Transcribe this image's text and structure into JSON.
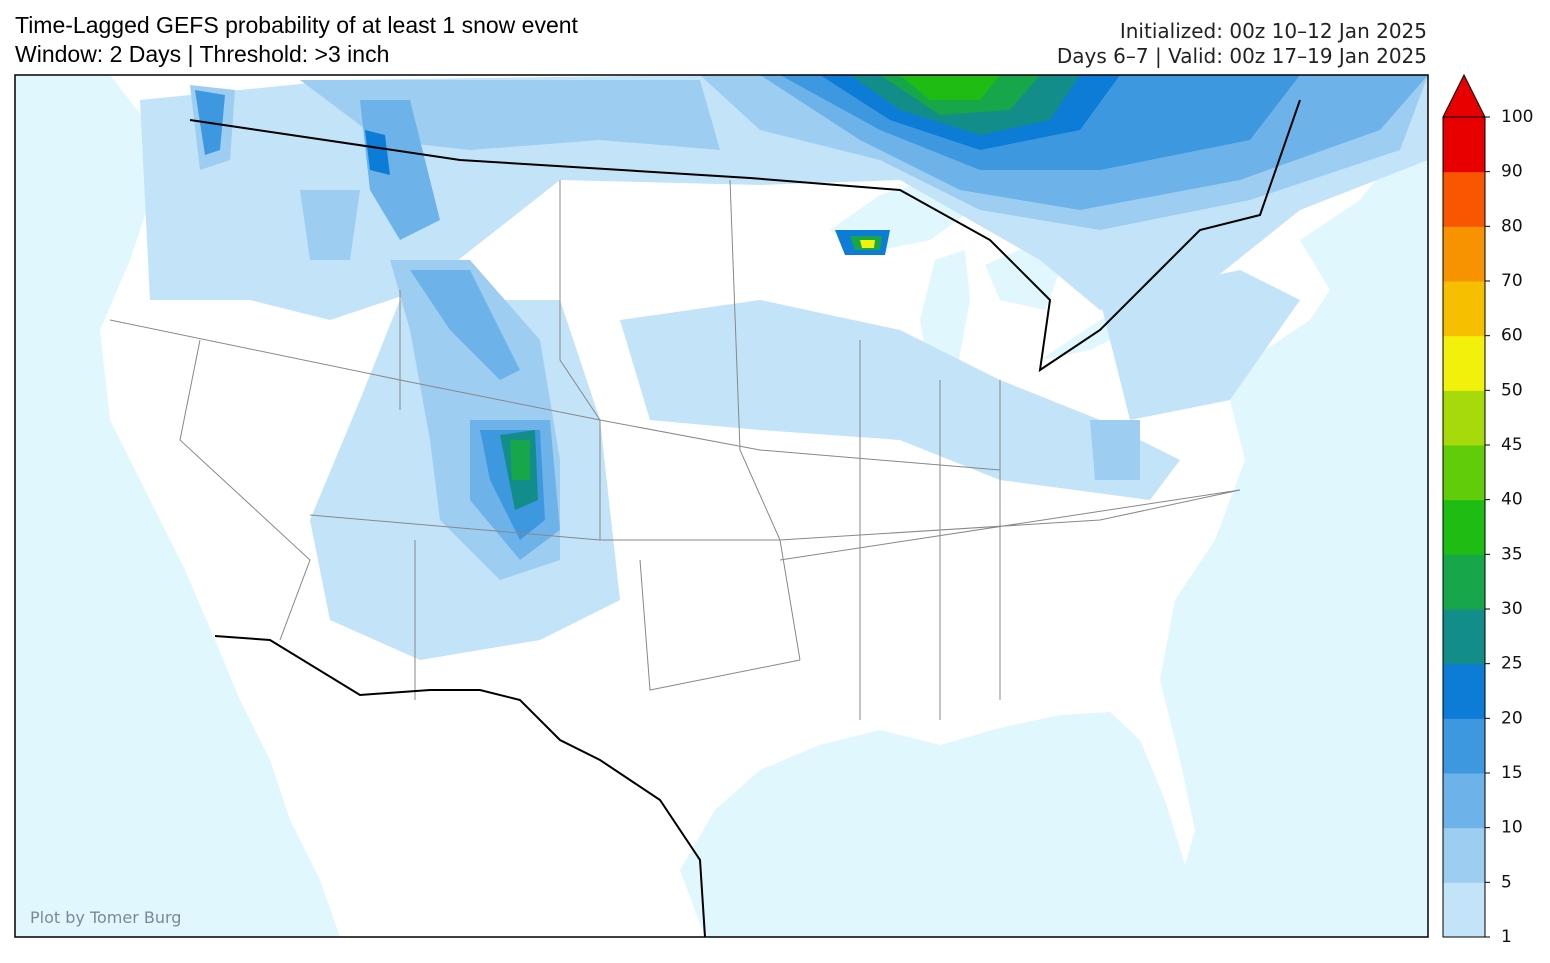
{
  "header": {
    "title": "Time-Lagged GEFS probability of at least 1 snow event",
    "subtitle": "Window: 2 Days | Threshold: >3 inch",
    "initialized": "Initialized: 00z 10–12 Jan 2025",
    "valid": "Days 6–7 | Valid: 00z 17–19 Jan 2025"
  },
  "colorbar": {
    "levels": [
      1,
      5,
      10,
      15,
      20,
      25,
      30,
      35,
      40,
      45,
      50,
      60,
      70,
      80,
      90,
      100
    ],
    "colors": [
      "#c2e3f8",
      "#9ecdf2",
      "#6db3ea",
      "#3e98df",
      "#0d7cd6",
      "#138d8a",
      "#17a64a",
      "#1fbd13",
      "#60cc0a",
      "#a6da0a",
      "#f1f10c",
      "#f6c000",
      "#f79200",
      "#f85600",
      "#e80000"
    ],
    "extend_color": "#e80000"
  },
  "credit": "Plot by Tomer Burg"
}
